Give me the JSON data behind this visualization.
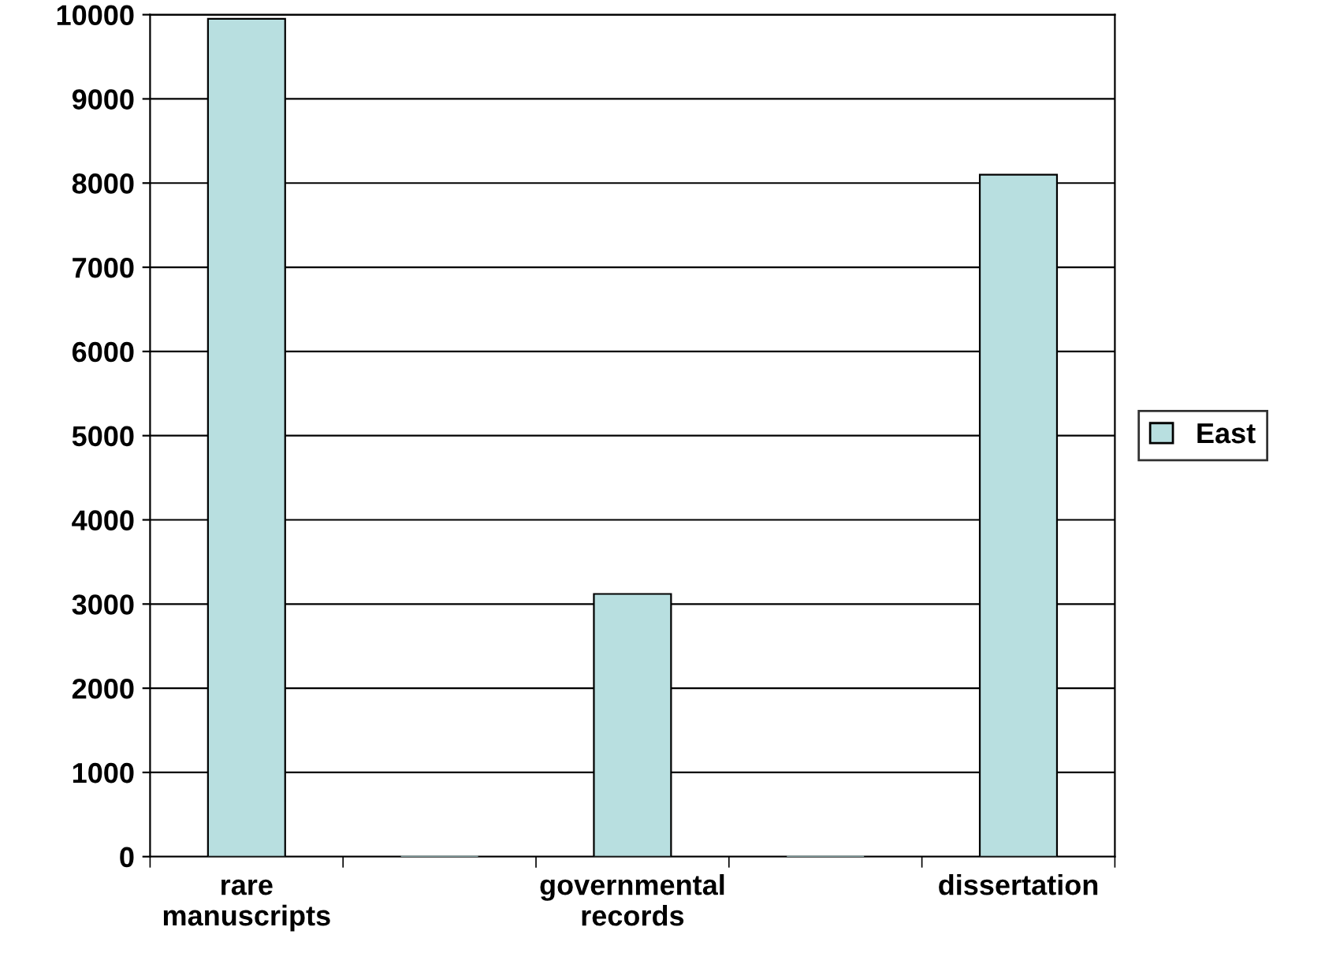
{
  "chart_data": {
    "type": "bar",
    "categories": [
      "rare manuscripts",
      null,
      "governmental records",
      null,
      "dissertation"
    ],
    "series": [
      {
        "name": "East",
        "color": "#b8dfe0",
        "values": [
          9950,
          0,
          3120,
          0,
          8100
        ]
      }
    ],
    "ylim": [
      0,
      10000
    ],
    "yticks": [
      0,
      1000,
      2000,
      3000,
      4000,
      5000,
      6000,
      7000,
      8000,
      9000,
      10000
    ],
    "grid": "y",
    "legend": "right"
  }
}
